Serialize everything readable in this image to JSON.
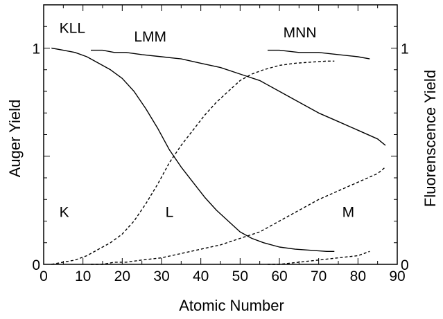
{
  "chart_data": {
    "type": "line",
    "title": "",
    "xlabel": "Atomic Number",
    "ylabel_left": "Auger Yield",
    "ylabel_right": "Fluorenscence Yield",
    "xlim": [
      0,
      90
    ],
    "ylim": [
      0,
      1.2
    ],
    "x_ticks": [
      0,
      10,
      20,
      30,
      40,
      50,
      60,
      70,
      80,
      90
    ],
    "y_tick_labels": [
      {
        "value": 0,
        "label": "0"
      },
      {
        "value": 1,
        "label": "1"
      }
    ],
    "grid": false,
    "legend": "none",
    "series": [
      {
        "name": "KLL",
        "style": "solid",
        "x": [
          2,
          5,
          8,
          11,
          14,
          17,
          20,
          23,
          26,
          29,
          32,
          35,
          38,
          41,
          44,
          47,
          50,
          53,
          56,
          60,
          64,
          68,
          72,
          74
        ],
        "y": [
          1.0,
          0.99,
          0.98,
          0.96,
          0.93,
          0.9,
          0.86,
          0.8,
          0.72,
          0.63,
          0.53,
          0.45,
          0.38,
          0.31,
          0.25,
          0.2,
          0.15,
          0.12,
          0.1,
          0.08,
          0.07,
          0.065,
          0.06,
          0.06
        ]
      },
      {
        "name": "LMM",
        "style": "solid",
        "x": [
          12,
          15,
          18,
          21,
          25,
          30,
          35,
          40,
          45,
          50,
          55,
          60,
          65,
          70,
          75,
          80,
          85,
          87
        ],
        "y": [
          0.99,
          0.99,
          0.98,
          0.98,
          0.97,
          0.96,
          0.95,
          0.93,
          0.91,
          0.88,
          0.85,
          0.8,
          0.75,
          0.7,
          0.66,
          0.62,
          0.58,
          0.55
        ]
      },
      {
        "name": "MNN",
        "style": "solid",
        "x": [
          57,
          60,
          65,
          70,
          75,
          80,
          83
        ],
        "y": [
          0.99,
          0.99,
          0.98,
          0.98,
          0.97,
          0.96,
          0.95
        ]
      },
      {
        "name": "K",
        "style": "dashed",
        "x": [
          2,
          5,
          8,
          11,
          14,
          17,
          20,
          23,
          26,
          29,
          32,
          35,
          38,
          41,
          44,
          47,
          50,
          53,
          56,
          60,
          64,
          68,
          72,
          74
        ],
        "y": [
          0.0,
          0.01,
          0.02,
          0.04,
          0.07,
          0.1,
          0.14,
          0.2,
          0.28,
          0.37,
          0.47,
          0.55,
          0.62,
          0.69,
          0.75,
          0.8,
          0.85,
          0.88,
          0.9,
          0.92,
          0.93,
          0.935,
          0.94,
          0.94
        ]
      },
      {
        "name": "L",
        "style": "dashed",
        "x": [
          12,
          15,
          18,
          21,
          25,
          30,
          35,
          40,
          45,
          50,
          55,
          60,
          65,
          70,
          75,
          80,
          85,
          87
        ],
        "y": [
          0.0,
          0.0,
          0.01,
          0.01,
          0.02,
          0.03,
          0.05,
          0.07,
          0.09,
          0.12,
          0.15,
          0.2,
          0.25,
          0.3,
          0.34,
          0.38,
          0.42,
          0.45
        ]
      },
      {
        "name": "M",
        "style": "dashed",
        "x": [
          57,
          60,
          65,
          70,
          75,
          80,
          83
        ],
        "y": [
          0.0,
          0.0,
          0.01,
          0.02,
          0.03,
          0.04,
          0.06
        ]
      }
    ],
    "curve_labels": [
      {
        "text": "KLL",
        "x": 4,
        "y": 1.07
      },
      {
        "text": "LMM",
        "x": 23,
        "y": 1.03
      },
      {
        "text": "MNN",
        "x": 61,
        "y": 1.05
      },
      {
        "text": "K",
        "x": 4,
        "y": 0.22
      },
      {
        "text": "L",
        "x": 31,
        "y": 0.22
      },
      {
        "text": "M",
        "x": 76,
        "y": 0.22
      }
    ]
  }
}
